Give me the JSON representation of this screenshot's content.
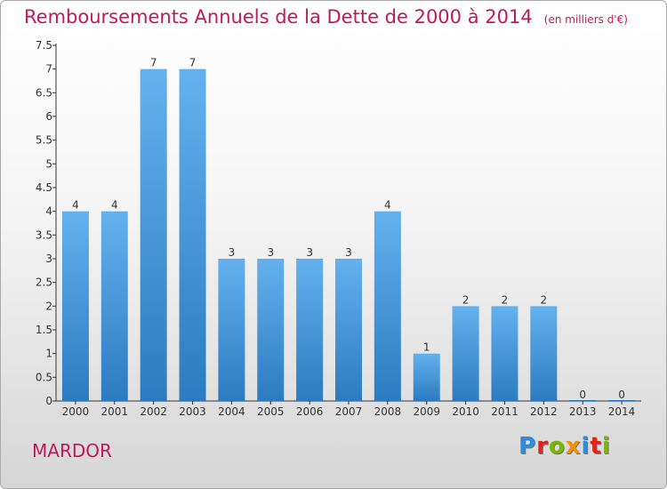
{
  "title": "Remboursements Annuels de la Dette de 2000 à 2014",
  "unit_note": "(en milliers d'€)",
  "town": "MARDOR",
  "logo": {
    "text": "Proxiti",
    "letter_colors": [
      "#2a8de0",
      "#e2231a",
      "#7ab800",
      "#f39200",
      "#2a8de0",
      "#e2231a",
      "#7ab800"
    ]
  },
  "colors": {
    "title": "#c2185b",
    "bar_top": "#64b1ee",
    "bar_bottom": "#2c7bc0",
    "axis": "#333333"
  },
  "chart_data": {
    "type": "bar",
    "title": "Remboursements Annuels de la Dette de 2000 à 2014",
    "xlabel": "",
    "ylabel": "",
    "categories": [
      "2000",
      "2001",
      "2002",
      "2003",
      "2004",
      "2005",
      "2006",
      "2007",
      "2008",
      "2009",
      "2010",
      "2011",
      "2012",
      "2013",
      "2014"
    ],
    "values": [
      4,
      4,
      7,
      7,
      3,
      3,
      3,
      3,
      4,
      1,
      2,
      2,
      2,
      0,
      0
    ],
    "value_labels": [
      "4",
      "4",
      "7",
      "7",
      "3",
      "3",
      "3",
      "3",
      "4",
      "1",
      "2",
      "2",
      "2",
      "0",
      "0"
    ],
    "yticks": [
      "0",
      "0.5",
      "1",
      "1.5",
      "2",
      "2.5",
      "3",
      "3.5",
      "4",
      "4.5",
      "5",
      "5.5",
      "6",
      "6.5",
      "7",
      "7.5"
    ],
    "ylim": [
      0,
      7.5
    ],
    "grid": false,
    "legend": "none"
  }
}
